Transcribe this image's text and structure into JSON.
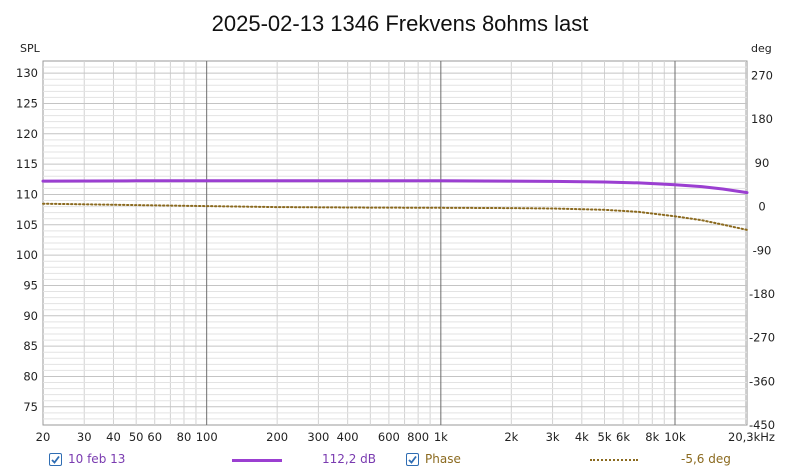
{
  "chart_data": {
    "type": "line",
    "title": "2025-02-13 1346 Frekvens 8ohms last",
    "xlabel": "Hz",
    "ylabel_left": "SPL",
    "ylabel_right": "deg",
    "x_scale": "log",
    "xlim": [
      20,
      20300
    ],
    "ylim_left": [
      72,
      132
    ],
    "ylim_right": [
      -450,
      300
    ],
    "grid": true,
    "x_ticks": [
      {
        "value": 20,
        "label": "20"
      },
      {
        "value": 30,
        "label": "30"
      },
      {
        "value": 40,
        "label": "40"
      },
      {
        "value": 50,
        "label": "50"
      },
      {
        "value": 60,
        "label": "60"
      },
      {
        "value": 80,
        "label": "80"
      },
      {
        "value": 100,
        "label": "100"
      },
      {
        "value": 200,
        "label": "200"
      },
      {
        "value": 300,
        "label": "300"
      },
      {
        "value": 400,
        "label": "400"
      },
      {
        "value": 600,
        "label": "600"
      },
      {
        "value": 800,
        "label": "800"
      },
      {
        "value": 1000,
        "label": "1k"
      },
      {
        "value": 2000,
        "label": "2k"
      },
      {
        "value": 3000,
        "label": "3k"
      },
      {
        "value": 4000,
        "label": "4k"
      },
      {
        "value": 5000,
        "label": "5k"
      },
      {
        "value": 6000,
        "label": "6k"
      },
      {
        "value": 8000,
        "label": "8k"
      },
      {
        "value": 10000,
        "label": "10k"
      },
      {
        "value": 20300,
        "label": "20,3kHz"
      }
    ],
    "y_ticks_left": [
      75,
      80,
      85,
      90,
      95,
      100,
      105,
      110,
      115,
      120,
      125,
      130
    ],
    "y_ticks_right": [
      270,
      180,
      90,
      0,
      -90,
      -180,
      -270,
      -360,
      -450
    ],
    "series": [
      {
        "name": "10 feb 13",
        "axis": "left",
        "color": "#9b3fd1",
        "style": "solid",
        "x": [
          20,
          50,
          100,
          200,
          500,
          1000,
          2000,
          3000,
          5000,
          7000,
          10000,
          13000,
          16000,
          20300
        ],
        "y": [
          112.2,
          112.25,
          112.25,
          112.25,
          112.25,
          112.25,
          112.2,
          112.15,
          112.05,
          111.9,
          111.6,
          111.3,
          110.9,
          110.3
        ]
      },
      {
        "name": "Phase",
        "axis": "right",
        "color": "#8b6a1f",
        "style": "dotted",
        "x": [
          20,
          50,
          100,
          200,
          500,
          1000,
          2000,
          3000,
          5000,
          7000,
          10000,
          13000,
          16000,
          20300
        ],
        "y": [
          6,
          3,
          1,
          -1,
          -2,
          -2.5,
          -3,
          -4,
          -6.5,
          -11,
          -20,
          -28,
          -37,
          -48
        ]
      }
    ],
    "legend": [
      {
        "label": "10 feb 13",
        "value": "112,2 dB",
        "checked": true
      },
      {
        "label": "Phase",
        "value": "-5,6 deg",
        "checked": true
      }
    ]
  }
}
